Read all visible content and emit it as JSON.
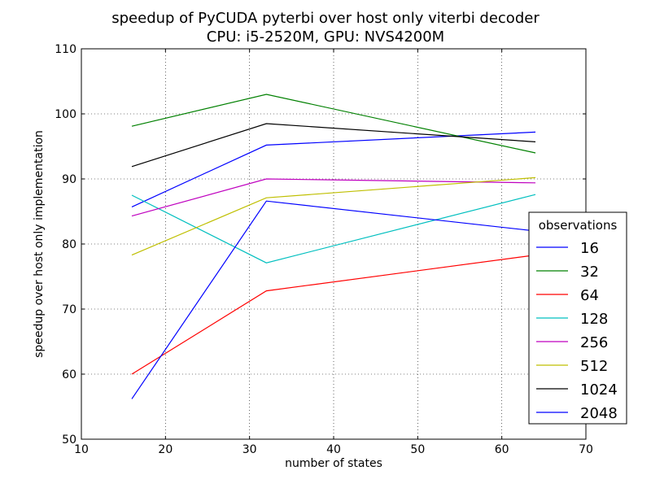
{
  "chart_data": {
    "type": "line",
    "title": "speedup of PyCUDA pyterbi over host only viterbi decoder",
    "subtitle": "CPU: i5-2520M, GPU: NVS4200M",
    "xlabel": "number of states",
    "ylabel": "speedup over host only implementation",
    "xlim": [
      10,
      70
    ],
    "ylim": [
      50,
      110
    ],
    "xticks": [
      10,
      20,
      30,
      40,
      50,
      60,
      70
    ],
    "yticks": [
      50,
      60,
      70,
      80,
      90,
      100,
      110
    ],
    "grid": true,
    "legend": {
      "title": "observations",
      "placement": "right"
    },
    "x": [
      16,
      32,
      64
    ],
    "series": [
      {
        "name": "16",
        "color": "#0000ff",
        "values": [
          85.7,
          95.2,
          97.2
        ]
      },
      {
        "name": "32",
        "color": "#008000",
        "values": [
          98.1,
          103.0,
          94.0
        ]
      },
      {
        "name": "64",
        "color": "#ff0000",
        "values": [
          60.0,
          72.8,
          78.3
        ]
      },
      {
        "name": "128",
        "color": "#00bfbf",
        "values": [
          87.5,
          77.1,
          87.6
        ]
      },
      {
        "name": "256",
        "color": "#bf00bf",
        "values": [
          84.3,
          90.0,
          89.4
        ]
      },
      {
        "name": "512",
        "color": "#bfbf00",
        "values": [
          78.3,
          87.1,
          90.2
        ]
      },
      {
        "name": "1024",
        "color": "#000000",
        "values": [
          91.9,
          98.5,
          95.7
        ]
      },
      {
        "name": "2048",
        "color": "#0000ff",
        "values": [
          56.2,
          86.6,
          82.0
        ]
      }
    ]
  }
}
